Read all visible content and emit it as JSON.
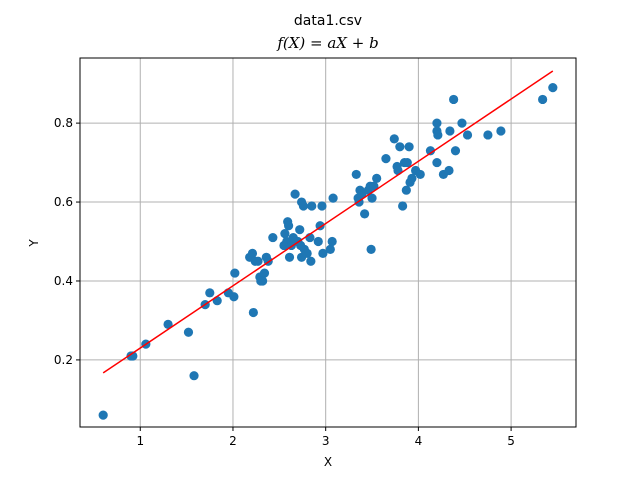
{
  "chart_data": {
    "type": "scatter",
    "title": "data1.csv",
    "subtitle": "f(X) = aX + b",
    "xlabel": "X",
    "ylabel": "Y",
    "xlim": [
      0.35,
      5.7
    ],
    "ylim": [
      0.03,
      0.965
    ],
    "xticks": [
      1,
      2,
      3,
      4,
      5
    ],
    "yticks": [
      0.2,
      0.4,
      0.6,
      0.8
    ],
    "xtick_labels": [
      "1",
      "2",
      "3",
      "4",
      "5"
    ],
    "ytick_labels": [
      "0.2",
      "0.4",
      "0.6",
      "0.8"
    ],
    "grid": true,
    "colors": {
      "points": "#1f77b4",
      "fit_line": "#ff0000",
      "grid": "#b0b0b0"
    },
    "series": [
      {
        "type": "scatter",
        "points": [
          [
            0.6,
            0.06
          ],
          [
            0.92,
            0.21
          ],
          [
            0.9,
            0.21
          ],
          [
            1.06,
            0.24
          ],
          [
            1.3,
            0.29
          ],
          [
            1.52,
            0.27
          ],
          [
            1.58,
            0.16
          ],
          [
            1.7,
            0.34
          ],
          [
            1.75,
            0.37
          ],
          [
            1.83,
            0.35
          ],
          [
            1.95,
            0.37
          ],
          [
            2.01,
            0.36
          ],
          [
            2.02,
            0.42
          ],
          [
            2.18,
            0.46
          ],
          [
            2.21,
            0.47
          ],
          [
            2.22,
            0.32
          ],
          [
            2.24,
            0.45
          ],
          [
            2.27,
            0.45
          ],
          [
            2.29,
            0.41
          ],
          [
            2.3,
            0.4
          ],
          [
            2.32,
            0.4
          ],
          [
            2.34,
            0.42
          ],
          [
            2.36,
            0.46
          ],
          [
            2.38,
            0.45
          ],
          [
            2.43,
            0.51
          ],
          [
            2.55,
            0.49
          ],
          [
            2.56,
            0.52
          ],
          [
            2.58,
            0.5
          ],
          [
            2.59,
            0.55
          ],
          [
            2.6,
            0.54
          ],
          [
            2.61,
            0.46
          ],
          [
            2.63,
            0.49
          ],
          [
            2.65,
            0.51
          ],
          [
            2.67,
            0.62
          ],
          [
            2.7,
            0.5
          ],
          [
            2.72,
            0.53
          ],
          [
            2.73,
            0.49
          ],
          [
            2.74,
            0.6
          ],
          [
            2.74,
            0.46
          ],
          [
            2.76,
            0.59
          ],
          [
            2.77,
            0.48
          ],
          [
            2.8,
            0.47
          ],
          [
            2.83,
            0.51
          ],
          [
            2.84,
            0.45
          ],
          [
            2.85,
            0.59
          ],
          [
            2.92,
            0.5
          ],
          [
            2.94,
            0.54
          ],
          [
            2.96,
            0.59
          ],
          [
            2.97,
            0.47
          ],
          [
            3.05,
            0.48
          ],
          [
            3.07,
            0.5
          ],
          [
            3.08,
            0.61
          ],
          [
            3.33,
            0.67
          ],
          [
            3.35,
            0.61
          ],
          [
            3.36,
            0.6
          ],
          [
            3.37,
            0.63
          ],
          [
            3.39,
            0.62
          ],
          [
            3.42,
            0.57
          ],
          [
            3.46,
            0.63
          ],
          [
            3.48,
            0.64
          ],
          [
            3.49,
            0.48
          ],
          [
            3.5,
            0.61
          ],
          [
            3.52,
            0.64
          ],
          [
            3.55,
            0.66
          ],
          [
            3.65,
            0.71
          ],
          [
            3.74,
            0.76
          ],
          [
            3.77,
            0.69
          ],
          [
            3.78,
            0.68
          ],
          [
            3.8,
            0.74
          ],
          [
            3.83,
            0.59
          ],
          [
            3.85,
            0.7
          ],
          [
            3.87,
            0.63
          ],
          [
            3.88,
            0.7
          ],
          [
            3.9,
            0.74
          ],
          [
            3.91,
            0.65
          ],
          [
            3.93,
            0.66
          ],
          [
            3.97,
            0.68
          ],
          [
            4.02,
            0.67
          ],
          [
            4.13,
            0.73
          ],
          [
            4.2,
            0.8
          ],
          [
            4.2,
            0.78
          ],
          [
            4.2,
            0.7
          ],
          [
            4.21,
            0.77
          ],
          [
            4.27,
            0.67
          ],
          [
            4.33,
            0.68
          ],
          [
            4.34,
            0.78
          ],
          [
            4.38,
            0.86
          ],
          [
            4.4,
            0.73
          ],
          [
            4.47,
            0.8
          ],
          [
            4.53,
            0.77
          ],
          [
            4.75,
            0.77
          ],
          [
            4.89,
            0.78
          ],
          [
            5.34,
            0.86
          ],
          [
            5.45,
            0.89
          ]
        ]
      },
      {
        "type": "line",
        "points": [
          [
            0.6,
            0.167
          ],
          [
            5.45,
            0.932
          ]
        ]
      }
    ]
  }
}
